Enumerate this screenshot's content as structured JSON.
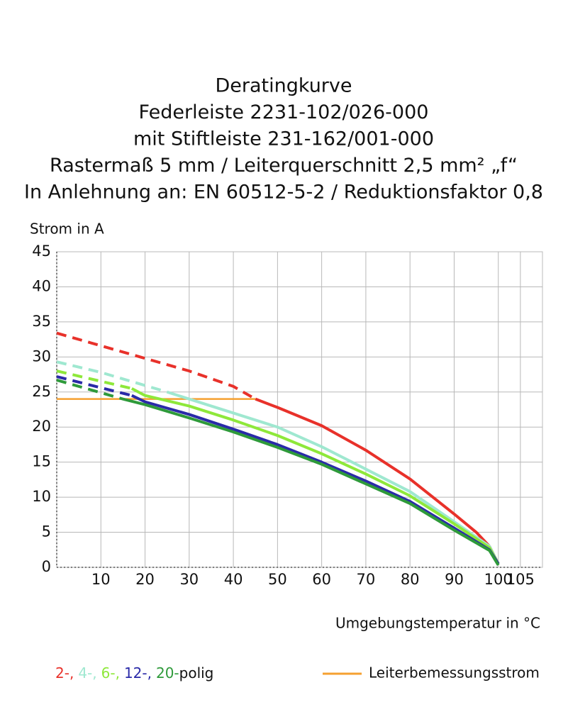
{
  "chart_data": {
    "type": "line",
    "title": [
      "Deratingkurve",
      "Federleiste 2231-102/026-000",
      "mit Stiftleiste 231-162/001-000",
      "Rastermaß 5 mm / Leiterquerschnitt 2,5 mm² „f“",
      "In Anlehnung an: EN 60512-5-2 / Reduktionsfaktor 0,8"
    ],
    "y_label": "Strom in A",
    "x_label": "Umgebungstemperatur in °C",
    "xlim": [
      0,
      110
    ],
    "xticks": [
      10,
      20,
      30,
      40,
      50,
      60,
      70,
      80,
      90,
      100,
      105
    ],
    "ylim": [
      0,
      45
    ],
    "yticks": [
      0,
      5,
      10,
      15,
      20,
      25,
      30,
      35,
      40,
      45
    ],
    "grid": true,
    "legend_suffix": "polig",
    "series": [
      {
        "name": "2-,",
        "color": "#e8312a",
        "x_dashed": [
          0,
          20,
          30,
          40,
          45
        ],
        "values_dashed": [
          33.4,
          29.8,
          28,
          25.8,
          24
        ],
        "x": [
          45,
          50,
          60,
          70,
          80,
          90,
          95,
          98,
          100
        ],
        "values": [
          24,
          22.8,
          20.2,
          16.7,
          12.6,
          7.6,
          5,
          3,
          0.5
        ]
      },
      {
        "name": "4-,",
        "color": "#9fe8d0",
        "x_dashed": [
          0,
          10,
          25
        ],
        "values_dashed": [
          29.3,
          27.8,
          25
        ],
        "x": [
          25,
          30,
          40,
          50,
          60,
          70,
          80,
          90,
          98,
          100
        ],
        "values": [
          25,
          24,
          22,
          20,
          17.2,
          14,
          10.8,
          6.5,
          3,
          0.5
        ]
      },
      {
        "name": "6-,",
        "color": "#8ee83a",
        "x_dashed": [
          0,
          17
        ],
        "values_dashed": [
          28,
          25.5
        ],
        "x": [
          17,
          20,
          30,
          40,
          50,
          60,
          70,
          80,
          90,
          98,
          100
        ],
        "values": [
          25.5,
          24.5,
          23,
          21,
          18.8,
          16.2,
          13.3,
          10.2,
          6.2,
          2.8,
          0.5
        ]
      },
      {
        "name": "12-,",
        "color": "#2a2aa8",
        "x_dashed": [
          0,
          17
        ],
        "values_dashed": [
          27.2,
          24.5
        ],
        "x": [
          17,
          20,
          30,
          40,
          50,
          60,
          70,
          80,
          90,
          98,
          100
        ],
        "values": [
          24.5,
          23.6,
          21.8,
          19.7,
          17.5,
          15,
          12.3,
          9.4,
          5.6,
          2.5,
          0.5
        ]
      },
      {
        "name": "20-",
        "color": "#2e9a3a",
        "x_dashed": [
          0,
          15
        ],
        "values_dashed": [
          26.7,
          24
        ],
        "x": [
          15,
          20,
          30,
          40,
          50,
          60,
          70,
          80,
          90,
          98,
          100
        ],
        "values": [
          24,
          23.2,
          21.3,
          19.3,
          17.1,
          14.7,
          11.9,
          9.1,
          5.3,
          2.4,
          0.3
        ]
      }
    ],
    "reference_line": {
      "name": "Leiterbemessungsstrom",
      "color": "#f5a030",
      "x": [
        0,
        45
      ],
      "values": [
        24,
        24
      ]
    }
  }
}
